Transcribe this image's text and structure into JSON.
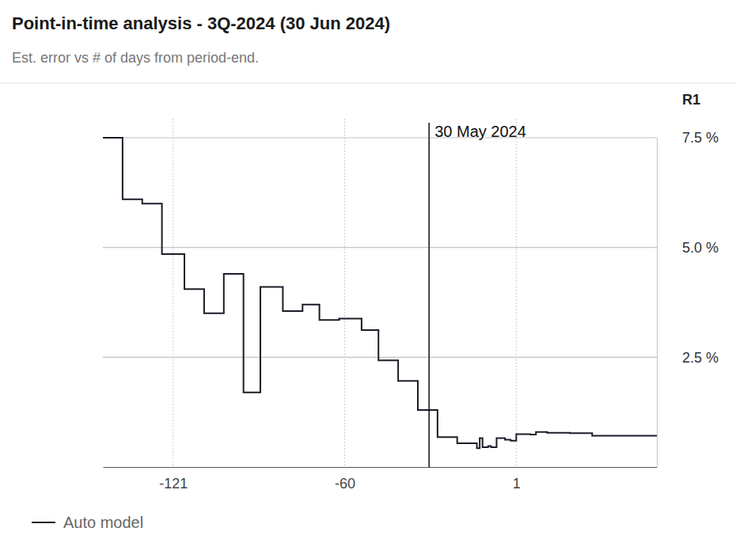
{
  "chart_data": {
    "type": "line",
    "title": "Point-in-time analysis - 3Q-2024 (30 Jun 2024)",
    "subtitle": "Est. error vs # of days from period-end.",
    "y_label": "R1",
    "x": [
      -146,
      -139,
      -132,
      -125,
      -117,
      -110,
      -103,
      -96,
      -90,
      -82,
      -75,
      -69,
      -62,
      -54,
      -48,
      -41,
      -34,
      -27,
      -20,
      -13,
      -12,
      -11,
      -9,
      -8,
      -6,
      -3,
      -1,
      1,
      6,
      8,
      12,
      20,
      28,
      51
    ],
    "series": [
      {
        "name": "Auto model",
        "color": "#1c1c28",
        "line_style": "step",
        "values": [
          7.5,
          6.1,
          6.0,
          4.85,
          4.05,
          3.5,
          4.4,
          1.7,
          4.1,
          3.55,
          3.7,
          3.35,
          3.38,
          3.12,
          2.43,
          1.96,
          1.3,
          0.68,
          0.54,
          0.43,
          0.66,
          0.45,
          0.48,
          0.45,
          0.66,
          0.62,
          0.6,
          0.75,
          0.74,
          0.8,
          0.78,
          0.77,
          0.71,
          0.71
        ]
      }
    ],
    "xlim": [
      -146,
      51
    ],
    "xticks": [
      -121,
      -60,
      1
    ],
    "ylim": [
      0,
      7.5
    ],
    "yticks": [
      {
        "value": 2.5,
        "label": "2.5 %"
      },
      {
        "value": 5,
        "label": "5.0 %"
      },
      {
        "value": 7.5,
        "label": "7.5 %"
      }
    ],
    "grid": true,
    "legend": "bottom-left",
    "annotations": [
      {
        "x": -30,
        "label": "30 May 2024"
      }
    ]
  }
}
